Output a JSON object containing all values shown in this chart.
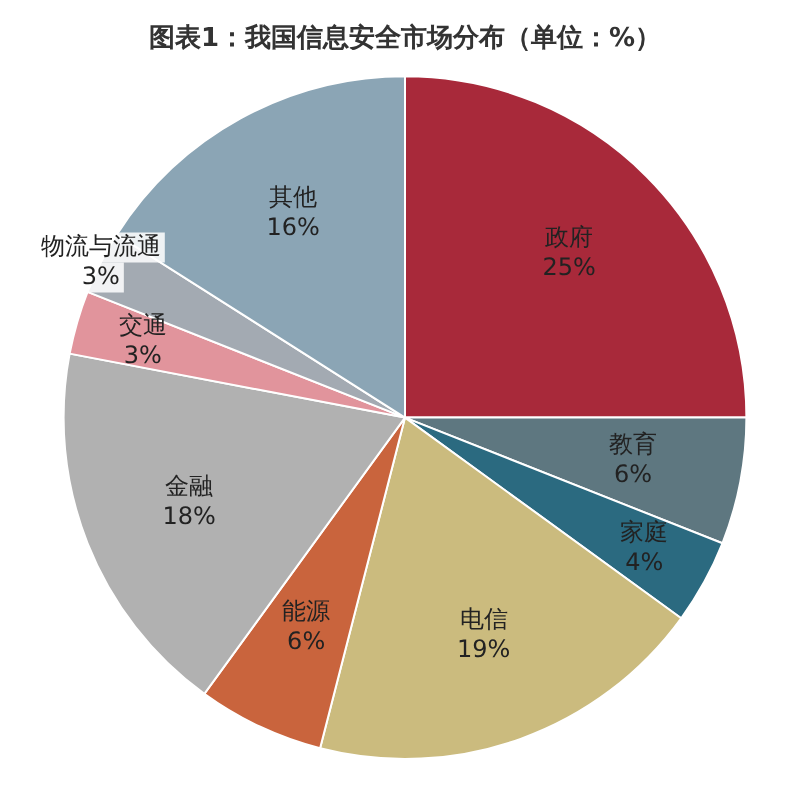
{
  "chart_data": {
    "type": "pie",
    "title": "图表1：我国信息安全市场分布（单位：%）",
    "categories": [
      "政府",
      "教育",
      "家庭",
      "电信",
      "能源",
      "金融",
      "交通",
      "物流与流通",
      "其他"
    ],
    "values": [
      25,
      6,
      4,
      19,
      6,
      18,
      3,
      3,
      16
    ],
    "value_labels": [
      "25%",
      "6%",
      "4%",
      "19%",
      "6%",
      "18%",
      "3%",
      "3%",
      "16%"
    ],
    "colors": [
      "#a8293a",
      "#5e7780",
      "#2b6a80",
      "#cbbb7e",
      "#c9643d",
      "#b1b1b1",
      "#e1949c",
      "#a3aab2",
      "#8ba5b5"
    ],
    "legend": false
  }
}
